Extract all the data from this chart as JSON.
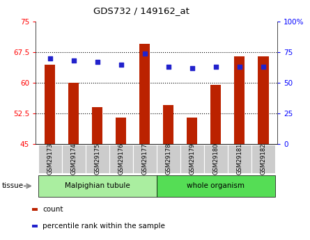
{
  "title": "GDS732 / 149162_at",
  "samples": [
    "GSM29173",
    "GSM29174",
    "GSM29175",
    "GSM29176",
    "GSM29177",
    "GSM29178",
    "GSM29179",
    "GSM29180",
    "GSM29181",
    "GSM29182"
  ],
  "counts": [
    64.5,
    60.0,
    54.0,
    51.5,
    69.5,
    54.5,
    51.5,
    59.5,
    66.5,
    66.5
  ],
  "percentiles_pct": [
    70,
    68,
    67,
    65,
    74,
    63,
    62,
    63,
    63,
    63
  ],
  "ylim_left": [
    45,
    75
  ],
  "ylim_right": [
    0,
    100
  ],
  "left_ticks": [
    45,
    52.5,
    60,
    67.5,
    75
  ],
  "right_ticks": [
    0,
    25,
    50,
    75,
    100
  ],
  "right_tick_labels": [
    "0",
    "25",
    "50",
    "75",
    "100%"
  ],
  "bar_color": "#bb2200",
  "dot_color": "#2222cc",
  "bar_bottom": 45,
  "bar_width": 0.45,
  "groups": [
    {
      "label": "Malpighian tubule",
      "start": 0,
      "end": 5,
      "color": "#aaeea0"
    },
    {
      "label": "whole organism",
      "start": 5,
      "end": 10,
      "color": "#55dd55"
    }
  ],
  "tissue_label": "tissue",
  "legend_items": [
    {
      "color": "#bb2200",
      "label": "count"
    },
    {
      "color": "#2222cc",
      "label": "percentile rank within the sample"
    }
  ],
  "grid_color": "#000000",
  "background_color": "#ffffff",
  "tick_bg_color": "#cccccc"
}
